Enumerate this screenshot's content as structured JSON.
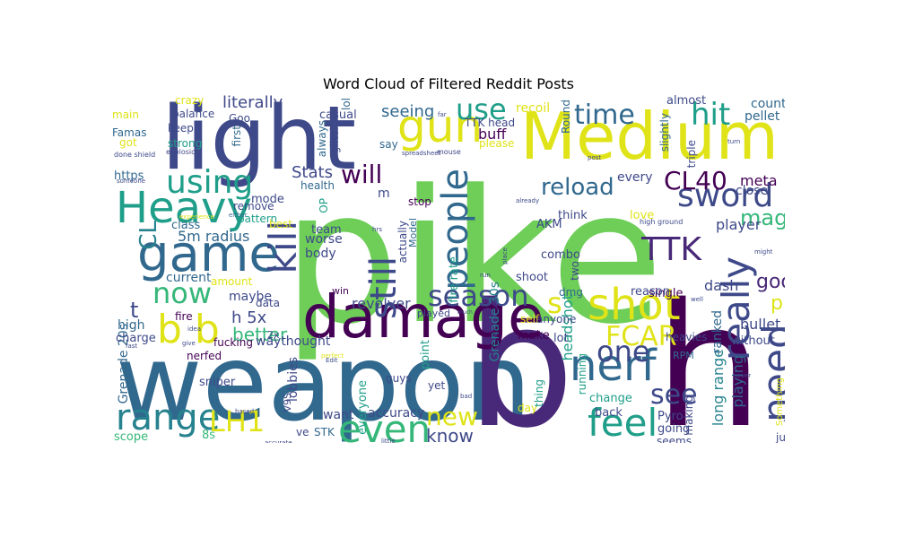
{
  "title": "Word Cloud of Filtered Reddit Posts",
  "colors": {
    "yellow": "#dfe318",
    "lightgreen": "#6ece58",
    "green": "#35b779",
    "teal": "#1f9e89",
    "cyan": "#26828e",
    "blue": "#31688e",
    "indigo": "#3e4989",
    "purple": "#482878",
    "dark": "#440154"
  },
  "words": [
    {
      "text": "pike",
      "color": "lightgreen"
    },
    {
      "text": "weapon",
      "color": "blue"
    },
    {
      "text": "b",
      "color": "purple"
    },
    {
      "text": "h",
      "color": "dark"
    },
    {
      "text": "light",
      "color": "indigo"
    },
    {
      "text": "Medium",
      "color": "yellow"
    },
    {
      "text": "damage",
      "color": "dark"
    },
    {
      "text": "game",
      "color": "blue"
    },
    {
      "text": "Heavy",
      "color": "teal"
    },
    {
      "text": "gun",
      "color": "yellow"
    },
    {
      "text": "shot",
      "color": "yellow"
    },
    {
      "text": "nerf",
      "color": "blue"
    },
    {
      "text": "range",
      "color": "cyan"
    },
    {
      "text": "b b",
      "color": "yellow"
    },
    {
      "text": "even",
      "color": "green"
    },
    {
      "text": "feel",
      "color": "teal"
    },
    {
      "text": "need",
      "color": "indigo"
    },
    {
      "text": "people",
      "color": "blue"
    },
    {
      "text": "season",
      "color": "indigo"
    },
    {
      "text": "kill",
      "color": "indigo"
    },
    {
      "text": "still",
      "color": "indigo"
    },
    {
      "text": "really",
      "color": "indigo"
    },
    {
      "text": "sword",
      "color": "indigo"
    },
    {
      "text": "CL40",
      "color": "dark"
    },
    {
      "text": "TTK",
      "color": "purple"
    },
    {
      "text": "hit",
      "color": "teal"
    },
    {
      "text": "time",
      "color": "blue"
    },
    {
      "text": "use",
      "color": "teal"
    },
    {
      "text": "using",
      "color": "teal"
    },
    {
      "text": "now",
      "color": "green"
    },
    {
      "text": "LH1",
      "color": "yellow"
    },
    {
      "text": "one",
      "color": "indigo"
    },
    {
      "text": "see",
      "color": "indigo"
    },
    {
      "text": "new",
      "color": "yellow"
    },
    {
      "text": "FCAR",
      "color": "yellow"
    },
    {
      "text": "reload",
      "color": "blue"
    },
    {
      "text": "will",
      "color": "dark"
    },
    {
      "text": "CL",
      "color": "cyan"
    },
    {
      "text": "s",
      "color": "yellow"
    },
    {
      "text": "t",
      "color": "indigo"
    },
    {
      "text": "mag",
      "color": "green"
    },
    {
      "text": "play",
      "color": "yellow"
    },
    {
      "text": "good",
      "color": "purple"
    },
    {
      "text": "know",
      "color": "indigo"
    },
    {
      "text": "better",
      "color": "green"
    },
    {
      "text": "h 5x",
      "color": "indigo"
    },
    {
      "text": "literally",
      "color": "indigo"
    },
    {
      "text": "5m radius",
      "color": "blue"
    },
    {
      "text": "buff",
      "color": "dark"
    },
    {
      "text": "meta",
      "color": "dark"
    },
    {
      "text": "Stats",
      "color": "indigo"
    },
    {
      "text": "headshot",
      "color": "teal"
    },
    {
      "text": "seeing",
      "color": "blue"
    },
    {
      "text": "counter",
      "color": "blue"
    },
    {
      "text": "pellet",
      "color": "blue"
    },
    {
      "text": "close",
      "color": "indigo"
    },
    {
      "text": "player",
      "color": "indigo"
    },
    {
      "text": "bullet",
      "color": "indigo"
    },
    {
      "text": "Mine",
      "color": "dark"
    },
    {
      "text": "long range",
      "color": "cyan"
    },
    {
      "text": "playing",
      "color": "blue"
    },
    {
      "text": "ranked",
      "color": "blue"
    },
    {
      "text": "without",
      "color": "indigo"
    },
    {
      "text": "dash",
      "color": "indigo"
    },
    {
      "text": "Grenade 20s",
      "color": "blue"
    },
    {
      "text": "Grenade 30s",
      "color": "cyan"
    },
    {
      "text": "fire rate",
      "color": "teal"
    },
    {
      "text": "revolver",
      "color": "indigo"
    },
    {
      "text": "accuracy",
      "color": "indigo"
    },
    {
      "text": "waythought",
      "color": "indigo"
    },
    {
      "text": "fucking",
      "color": "dark"
    },
    {
      "text": "body",
      "color": "indigo"
    },
    {
      "text": "worse",
      "color": "indigo"
    },
    {
      "text": "team",
      "color": "indigo"
    },
    {
      "text": "mode",
      "color": "indigo"
    },
    {
      "text": "remove",
      "color": "indigo"
    },
    {
      "text": "pattern",
      "color": "teal"
    },
    {
      "text": "class",
      "color": "blue"
    },
    {
      "text": "maybe",
      "color": "indigo"
    },
    {
      "text": "current",
      "color": "blue"
    },
    {
      "text": "amount",
      "color": "yellow"
    },
    {
      "text": "high",
      "color": "blue"
    },
    {
      "text": "charge",
      "color": "indigo"
    },
    {
      "text": "fire",
      "color": "dark"
    },
    {
      "text": "nerfed",
      "color": "dark"
    },
    {
      "text": "sniper",
      "color": "indigo"
    },
    {
      "text": "scope",
      "color": "green"
    },
    {
      "text": "8s",
      "color": "green"
    },
    {
      "text": "V9S",
      "color": "indigo"
    },
    {
      "text": "ve",
      "color": "indigo"
    },
    {
      "text": "STK",
      "color": "blue"
    },
    {
      "text": "want",
      "color": "indigo"
    },
    {
      "text": "lobbies",
      "color": "indigo"
    },
    {
      "text": "everyone",
      "color": "teal"
    },
    {
      "text": "guys",
      "color": "indigo"
    },
    {
      "text": "yet",
      "color": "indigo"
    },
    {
      "text": "point",
      "color": "teal"
    },
    {
      "text": "2x",
      "color": "indigo"
    },
    {
      "text": "win",
      "color": "dark"
    },
    {
      "text": "played",
      "color": "indigo"
    },
    {
      "text": "make",
      "color": "dark"
    },
    {
      "text": "lot",
      "color": "indigo"
    },
    {
      "text": "shoot",
      "color": "indigo"
    },
    {
      "text": "single",
      "color": "dark"
    },
    {
      "text": "AKM",
      "color": "indigo"
    },
    {
      "text": "combo",
      "color": "indigo"
    },
    {
      "text": "think",
      "color": "indigo"
    },
    {
      "text": "love",
      "color": "yellow"
    },
    {
      "text": "reason",
      "color": "indigo"
    },
    {
      "text": "RPM",
      "color": "blue"
    },
    {
      "text": "change",
      "color": "teal"
    },
    {
      "text": "back",
      "color": "indigo"
    },
    {
      "text": "Pyro",
      "color": "indigo"
    },
    {
      "text": "going",
      "color": "indigo"
    },
    {
      "text": "seems",
      "color": "indigo"
    },
    {
      "text": "making",
      "color": "indigo"
    },
    {
      "text": "day",
      "color": "yellow"
    },
    {
      "text": "thing",
      "color": "teal"
    },
    {
      "text": "running",
      "color": "teal"
    },
    {
      "text": "every",
      "color": "indigo"
    },
    {
      "text": "TTK head",
      "color": "indigo"
    },
    {
      "text": "recoil",
      "color": "yellow"
    },
    {
      "text": "almost",
      "color": "indigo"
    },
    {
      "text": "slightly",
      "color": "blue"
    },
    {
      "text": "triple",
      "color": "indigo"
    },
    {
      "text": "crazy",
      "color": "yellow"
    },
    {
      "text": "main",
      "color": "yellow"
    },
    {
      "text": "balance",
      "color": "indigo"
    },
    {
      "text": "Goo",
      "color": "indigo"
    },
    {
      "text": "keep",
      "color": "indigo"
    },
    {
      "text": "strong",
      "color": "teal"
    },
    {
      "text": "Famas",
      "color": "blue"
    },
    {
      "text": "got",
      "color": "yellow"
    },
    {
      "text": "https",
      "color": "blue"
    },
    {
      "text": "casual",
      "color": "indigo"
    },
    {
      "text": "health",
      "color": "blue"
    },
    {
      "text": "stop",
      "color": "dark"
    },
    {
      "text": "please",
      "color": "yellow"
    },
    {
      "text": "say",
      "color": "blue"
    },
    {
      "text": "first",
      "color": "blue"
    },
    {
      "text": "always",
      "color": "blue"
    },
    {
      "text": "glitch",
      "color": "indigo"
    },
    {
      "text": "OP",
      "color": "teal"
    },
    {
      "text": "best",
      "color": "yellow"
    },
    {
      "text": "actually",
      "color": "indigo"
    },
    {
      "text": "Model",
      "color": "blue"
    },
    {
      "text": "m",
      "color": "indigo"
    },
    {
      "text": "data",
      "color": "indigo"
    },
    {
      "text": "self",
      "color": "yellow"
    },
    {
      "text": "dmg",
      "color": "blue"
    },
    {
      "text": "two",
      "color": "indigo"
    },
    {
      "text": "anyone",
      "color": "indigo"
    },
    {
      "text": "lower",
      "color": "indigo"
    },
    {
      "text": "heavies",
      "color": "indigo"
    },
    {
      "text": "Round",
      "color": "blue"
    },
    {
      "text": "lol",
      "color": "blue"
    },
    {
      "text": "jump",
      "color": "indigo"
    },
    {
      "text": "Something",
      "color": "yellow"
    },
    {
      "text": "explosion",
      "color": "indigo"
    },
    {
      "text": "done shield",
      "color": "indigo"
    },
    {
      "text": "high ground",
      "color": "indigo"
    },
    {
      "text": "spreadsheet",
      "color": "indigo"
    },
    {
      "text": "mouse",
      "color": "indigo"
    },
    {
      "text": "post",
      "color": "indigo"
    },
    {
      "text": "turn",
      "color": "indigo"
    },
    {
      "text": "already",
      "color": "indigo"
    },
    {
      "text": "either",
      "color": "blue"
    },
    {
      "text": "place",
      "color": "indigo"
    },
    {
      "text": "might",
      "color": "indigo"
    },
    {
      "text": "well",
      "color": "indigo"
    },
    {
      "text": "never",
      "color": "indigo"
    },
    {
      "text": "20s 5m",
      "color": "indigo"
    },
    {
      "text": "able",
      "color": "indigo"
    },
    {
      "text": "accurate",
      "color": "indigo"
    },
    {
      "text": "little",
      "color": "indigo"
    },
    {
      "text": "much",
      "color": "indigo"
    },
    {
      "text": "bad",
      "color": "indigo"
    },
    {
      "text": "Edit",
      "color": "indigo"
    },
    {
      "text": "idea",
      "color": "indigo"
    },
    {
      "text": "give",
      "color": "indigo"
    },
    {
      "text": "fast",
      "color": "indigo"
    },
    {
      "text": "perfect",
      "color": "yellow"
    },
    {
      "text": "far",
      "color": "indigo"
    },
    {
      "text": "run",
      "color": "indigo"
    },
    {
      "text": "someone",
      "color": "indigo"
    },
    {
      "text": "experience",
      "color": "yellow"
    },
    {
      "text": "based",
      "color": "indigo"
    },
    {
      "text": "hrs",
      "color": "indigo"
    }
  ]
}
